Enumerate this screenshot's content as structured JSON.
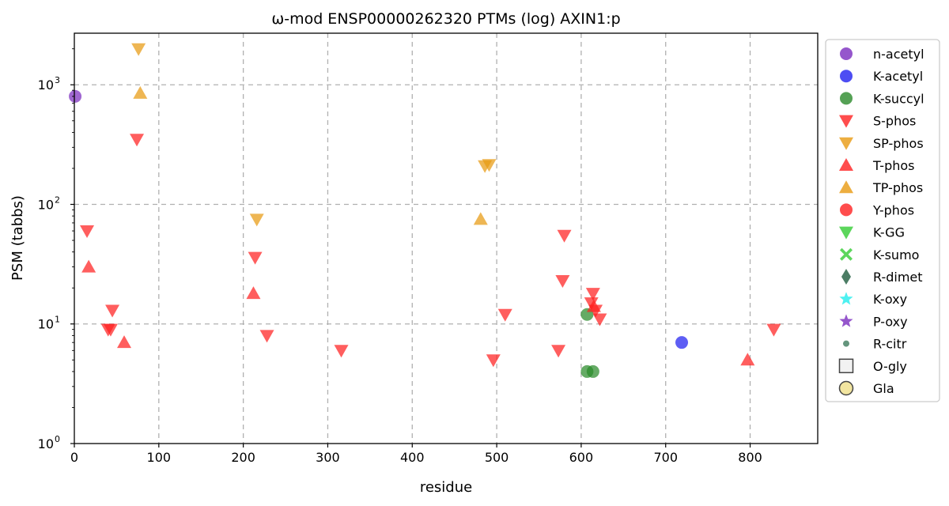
{
  "chart_data": {
    "type": "scatter",
    "title": "ω-mod ENSP00000262320 PTMs (log) AXIN1:p",
    "xlabel": "residue",
    "ylabel": "PSM (tabbs)",
    "xlim": [
      0,
      880
    ],
    "ylim": [
      1,
      2700
    ],
    "yscale": "log",
    "grid": true,
    "legend_position": "right",
    "x_ticks": [
      "0",
      "100",
      "200",
      "300",
      "400",
      "500",
      "600",
      "700",
      "800"
    ],
    "y_ticks": [
      {
        "base": "10",
        "exp": "0"
      },
      {
        "base": "10",
        "exp": "1"
      },
      {
        "base": "10",
        "exp": "2"
      },
      {
        "base": "10",
        "exp": "3"
      }
    ],
    "series": [
      {
        "name": "n-acetyl",
        "marker": "circle",
        "color": "#7b2cbf",
        "points": [
          [
            1,
            800
          ]
        ]
      },
      {
        "name": "K-acetyl",
        "marker": "circle",
        "color": "#2020f0",
        "points": [
          [
            719,
            7
          ]
        ]
      },
      {
        "name": "K-succyl",
        "marker": "circle",
        "color": "#2a8a2a",
        "points": [
          [
            607,
            12
          ],
          [
            607,
            4
          ],
          [
            614,
            4
          ]
        ]
      },
      {
        "name": "S-phos",
        "marker": "triangle-down",
        "color": "#ff2020",
        "points": [
          [
            15,
            60
          ],
          [
            40,
            9
          ],
          [
            43,
            9
          ],
          [
            45,
            13
          ],
          [
            74,
            350
          ],
          [
            214,
            36
          ],
          [
            228,
            8
          ],
          [
            316,
            6
          ],
          [
            496,
            5
          ],
          [
            510,
            12
          ],
          [
            573,
            6
          ],
          [
            578,
            23
          ],
          [
            580,
            55
          ],
          [
            612,
            15
          ],
          [
            614,
            18
          ],
          [
            617,
            13
          ],
          [
            622,
            11
          ],
          [
            828,
            9
          ]
        ]
      },
      {
        "name": "SP-phos",
        "marker": "triangle-down",
        "color": "#e89a10",
        "points": [
          [
            76,
            2000
          ],
          [
            216,
            75
          ],
          [
            486,
            210
          ],
          [
            491,
            215
          ]
        ]
      },
      {
        "name": "T-phos",
        "marker": "triangle-up",
        "color": "#ff2020",
        "points": [
          [
            17,
            30
          ],
          [
            59,
            7
          ],
          [
            212,
            18
          ],
          [
            615,
            14
          ],
          [
            797,
            5
          ]
        ]
      },
      {
        "name": "TP-phos",
        "marker": "triangle-up",
        "color": "#e89a10",
        "points": [
          [
            78,
            850
          ],
          [
            481,
            75
          ]
        ]
      },
      {
        "name": "Y-phos",
        "marker": "circle",
        "color": "#ff2020",
        "points": []
      },
      {
        "name": "K-GG",
        "marker": "triangle-down",
        "color": "#33cc33",
        "points": []
      },
      {
        "name": "K-sumo",
        "marker": "x",
        "color": "#33cc33",
        "points": []
      },
      {
        "name": "R-dimet",
        "marker": "diamond",
        "color": "#1f5c3e",
        "points": []
      },
      {
        "name": "K-oxy",
        "marker": "star",
        "color": "#22eeee",
        "points": []
      },
      {
        "name": "P-oxy",
        "marker": "star",
        "color": "#7b2cbf",
        "points": []
      },
      {
        "name": "R-citr",
        "marker": "small-circle",
        "color": "#3d7a5c",
        "points": []
      },
      {
        "name": "O-gly",
        "marker": "square-open",
        "color": "#444444",
        "points": []
      },
      {
        "name": "Gla",
        "marker": "circle-open",
        "color": "#f2e5a0",
        "points": []
      }
    ]
  }
}
